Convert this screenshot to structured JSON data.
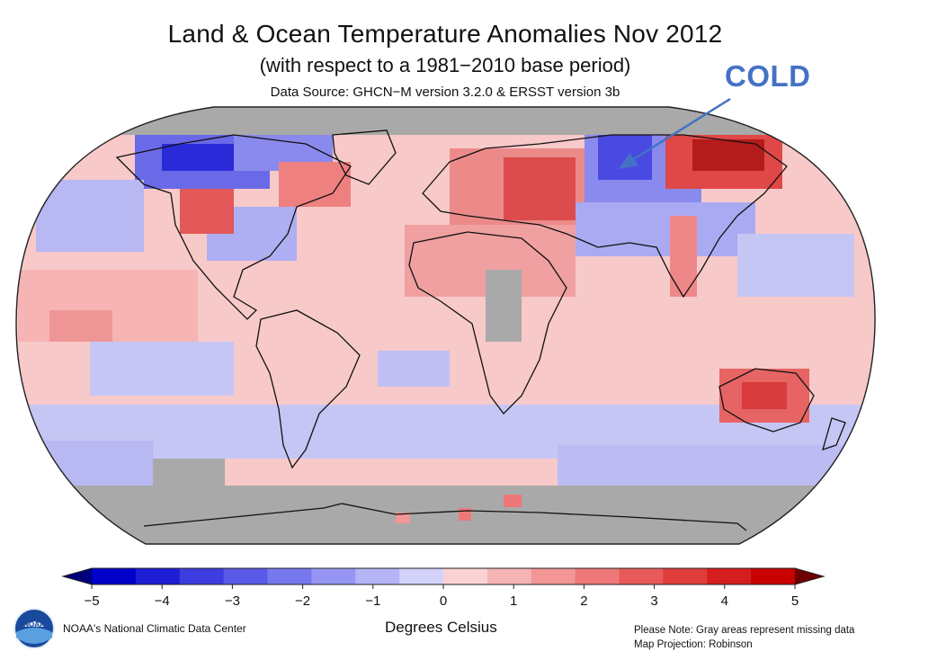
{
  "title": "Land & Ocean Temperature Anomalies Nov 2012",
  "subtitle": "(with respect to a 1981−2010 base period)",
  "source": "Data Source: GHCN−M version 3.2.0 & ERSST version 3b",
  "annotation": {
    "label": "COLD",
    "color": "#4472c4"
  },
  "colorbar": {
    "ticks": [
      "−5",
      "−4",
      "−3",
      "−2",
      "−1",
      "0",
      "1",
      "2",
      "3",
      "4",
      "5"
    ],
    "unit_label": "Degrees Celsius",
    "colors": [
      "#0000c8",
      "#1e1ed6",
      "#3c3ce0",
      "#5a5ae8",
      "#7878ee",
      "#9696f2",
      "#b4b4f6",
      "#d2d2fa",
      "#fad2d2",
      "#f6b4b4",
      "#f29696",
      "#ee7878",
      "#e85a5a",
      "#e03c3c",
      "#d61e1e",
      "#c80000"
    ],
    "end_low": "#00007a",
    "end_high": "#6e0000"
  },
  "missing_color": "#a9a9a9",
  "footer": {
    "credit": "NOAA's National Climatic Data Center",
    "note_1": "Please Note: Gray areas represent missing data",
    "note_2": "Map Projection: Robinson",
    "logo_text": "NOAA"
  }
}
